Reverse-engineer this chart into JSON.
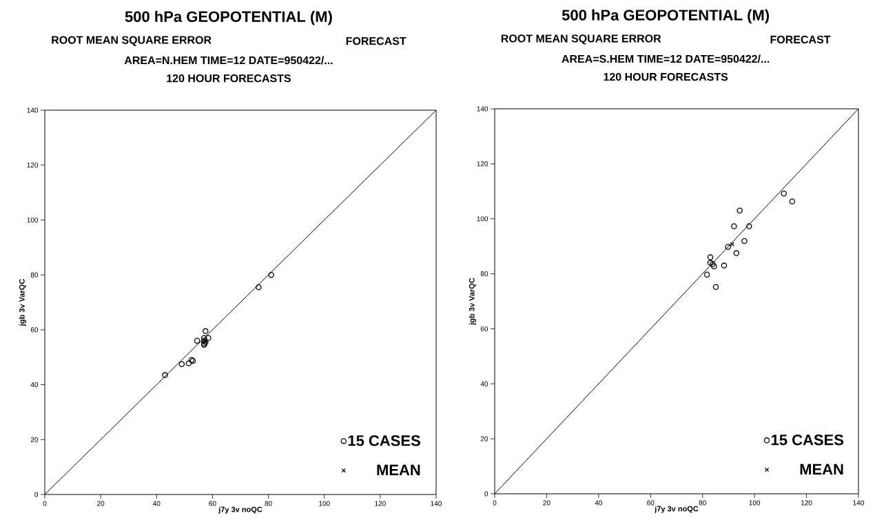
{
  "chart_data": [
    {
      "type": "scatter",
      "title": "500 hPa GEOPOTENTIAL (M)",
      "subtitle": "ROOT MEAN SQUARE ERROR",
      "annotations": [
        "FORECAST",
        "AREA=N.HEM TIME=12 DATE=950422/...",
        "120 HOUR FORECASTS"
      ],
      "xlabel": "j7y 3v noQC",
      "ylabel": "jgb 3v VarQC",
      "xlim": [
        0,
        140
      ],
      "ylim": [
        0,
        140
      ],
      "xticks": [
        0,
        20,
        40,
        60,
        80,
        100,
        120,
        140
      ],
      "yticks": [
        0,
        20,
        40,
        60,
        80,
        100,
        120,
        140
      ],
      "legend": "bottom right",
      "series": [
        {
          "name": "15 CASES",
          "marker": "circle",
          "color": "#000000",
          "x": [
            43,
            49,
            51.5,
            52.5,
            53,
            54.5,
            57.5,
            57,
            58.5,
            57,
            57,
            57,
            57.5,
            76.5,
            81
          ],
          "values": [
            43.5,
            47.5,
            47.8,
            49,
            48.7,
            56,
            59.5,
            57,
            57,
            56,
            55,
            54.5,
            55.5,
            75.5,
            80
          ]
        },
        {
          "name": "MEAN",
          "marker": "cross",
          "color": "#000000",
          "x": [
            57.5
          ],
          "values": [
            56
          ]
        },
        {
          "type": "line",
          "marker": "none",
          "color": "#000000",
          "x": [
            0,
            140
          ],
          "values": [
            0,
            140
          ]
        }
      ]
    },
    {
      "type": "scatter",
      "title": "500 hPa GEOPOTENTIAL (M)",
      "subtitle": "ROOT MEAN SQUARE ERROR",
      "annotations": [
        "FORECAST",
        "AREA=S.HEM TIME=12 DATE=950422/...",
        "120 HOUR FORECASTS"
      ],
      "xlabel": "j7y 3v noQC",
      "ylabel": "jgb 3v VarQC",
      "xlim": [
        0,
        140
      ],
      "ylim": [
        0,
        140
      ],
      "xticks": [
        0,
        20,
        40,
        60,
        80,
        100,
        120,
        140
      ],
      "yticks": [
        0,
        20,
        40,
        60,
        80,
        100,
        120,
        140
      ],
      "legend": "bottom right",
      "series": [
        {
          "name": "15 CASES",
          "marker": "circle",
          "color": "#000000",
          "x": [
            111.3,
            114.5,
            94.3,
            92.1,
            97.9,
            96.1,
            89.8,
            93,
            83,
            83,
            83.9,
            84.4,
            88.3,
            81.7,
            85.1
          ],
          "values": [
            109.2,
            106.3,
            103,
            97.3,
            97.3,
            91.9,
            89.8,
            87.5,
            86,
            84,
            83.5,
            82.7,
            83,
            79.7,
            75.2
          ]
        },
        {
          "name": "MEAN",
          "marker": "cross",
          "color": "#000000",
          "x": [
            91.4
          ],
          "values": [
            90.7
          ]
        },
        {
          "type": "line",
          "marker": "none",
          "color": "#000000",
          "x": [
            0,
            140
          ],
          "values": [
            0,
            140
          ]
        }
      ]
    }
  ]
}
